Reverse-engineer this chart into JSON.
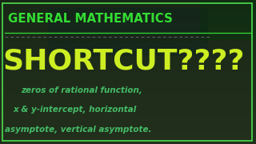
{
  "bg_color": "#3a2e20",
  "overlay_color": "#1a2e1a",
  "border_color": "#4ddd4d",
  "title_text": "GENERAL MATHEMATICS",
  "title_color": "#33dd33",
  "title_underline_color": "#33dd33",
  "dashes_color": "#666666",
  "shortcut_text": "SHORTCUT????",
  "shortcut_color": "#ccee22",
  "sub_text_line1": "zeros of rational function,",
  "sub_text_line2": "x & y-intercept, horizontal",
  "sub_text_line3": "asymptote, vertical asymptote.",
  "sub_color": "#44bb66",
  "figsize": [
    3.2,
    1.8
  ],
  "dpi": 100
}
